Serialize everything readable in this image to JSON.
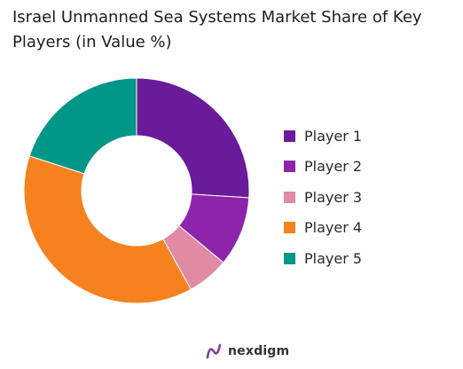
{
  "chart_data": {
    "type": "pie",
    "title": "Israel Unmanned Sea Systems Market Share of Key Players (in Value %)",
    "donut": true,
    "legend_position": "right",
    "categories": [
      "Player 1",
      "Player 2",
      "Player 3",
      "Player 4",
      "Player 5"
    ],
    "values": [
      26,
      10,
      6,
      38,
      20
    ],
    "colors": [
      "#6a1b9a",
      "#8e24aa",
      "#e08aa3",
      "#f5821f",
      "#009688"
    ]
  },
  "logo": {
    "text": "nexdigm",
    "icon": "nexdigm-logo-icon"
  }
}
